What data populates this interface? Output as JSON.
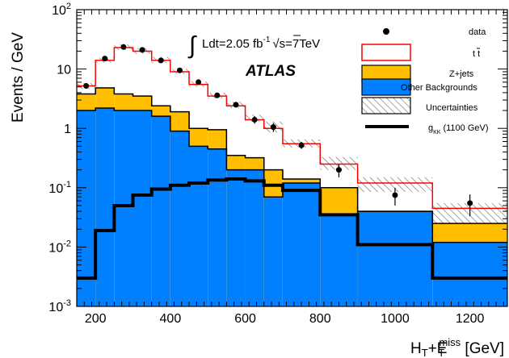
{
  "chart_data": {
    "type": "bar",
    "title": "",
    "ylabel": "Events / GeV",
    "xlabel_main": "H",
    "xlabel_sub1": "T",
    "xlabel_plus": "+E",
    "xlabel_sup": "miss",
    "xlabel_sub2": "T",
    "xlabel_unit": " [GeV]",
    "xlim": [
      150,
      1300
    ],
    "ylim": [
      0.001,
      100
    ],
    "ylog": true,
    "x_ticks": [
      200,
      400,
      600,
      800,
      1000,
      1200
    ],
    "x_tick_labels": [
      "200",
      "400",
      "600",
      "800",
      "1000",
      "1200"
    ],
    "y_ticks": [
      {
        "value": 0.001,
        "base": "10",
        "exp": "-3"
      },
      {
        "value": 0.01,
        "base": "10",
        "exp": "-2"
      },
      {
        "value": 0.1,
        "base": "10",
        "exp": "-1"
      },
      {
        "value": 1,
        "base": "1",
        "exp": ""
      },
      {
        "value": 10,
        "base": "10",
        "exp": ""
      },
      {
        "value": 100,
        "base": "10",
        "exp": "2"
      }
    ],
    "bin_edges": [
      150,
      200,
      250,
      300,
      350,
      400,
      450,
      500,
      550,
      600,
      650,
      700,
      800,
      900,
      1100,
      1300
    ],
    "series": [
      {
        "name": "Other Backgrounds",
        "color": "#0080ff",
        "values": [
          2.0,
          2.2,
          2.0,
          2.0,
          1.6,
          0.9,
          0.5,
          0.45,
          0.2,
          0.2,
          0.07,
          0.12,
          0.035,
          0.04,
          0.012
        ]
      },
      {
        "name": "Z+jets",
        "color": "#ffbf00",
        "values": [
          3.8,
          4.8,
          3.8,
          3.5,
          2.4,
          1.9,
          1.0,
          0.95,
          0.35,
          0.32,
          0.2,
          0.14,
          0.1,
          0.04,
          0.025
        ]
      },
      {
        "name": "t t",
        "color": "#ff0000",
        "values": [
          5.2,
          14.0,
          23.0,
          20.0,
          14.0,
          9.0,
          5.5,
          3.5,
          2.4,
          1.4,
          1.0,
          0.55,
          0.25,
          0.12,
          0.045
        ]
      }
    ],
    "uncertainty_band": {
      "name": "Uncertainties",
      "low": [
        4.6,
        12.8,
        21.0,
        18.0,
        12.5,
        8.2,
        5.0,
        3.2,
        2.2,
        1.3,
        0.85,
        0.48,
        0.2,
        0.085,
        0.018
      ],
      "high": [
        5.8,
        15.5,
        26.0,
        22.5,
        16.0,
        10.0,
        6.2,
        4.0,
        2.8,
        1.7,
        1.3,
        0.65,
        0.33,
        0.15,
        0.055
      ]
    },
    "signal": {
      "name": "(1100 GeV)",
      "values": [
        0.003,
        0.019,
        0.05,
        0.075,
        0.095,
        0.11,
        0.12,
        0.135,
        0.14,
        0.13,
        0.11,
        0.09,
        0.035,
        0.011,
        0.003
      ]
    },
    "data": {
      "name": "data",
      "x": [
        175,
        225,
        275,
        325,
        375,
        425,
        475,
        525,
        575,
        625,
        675,
        750,
        850,
        1000,
        1200
      ],
      "y": [
        5.2,
        15.0,
        23.5,
        21.0,
        14.0,
        9.5,
        6.0,
        3.6,
        2.5,
        1.4,
        1.05,
        0.52,
        0.2,
        0.075,
        0.055
      ],
      "yerr": [
        0.4,
        0.65,
        0.85,
        0.8,
        0.6,
        0.5,
        0.4,
        0.3,
        0.25,
        0.2,
        0.18,
        0.07,
        0.05,
        0.025,
        0.022
      ]
    },
    "annotations": {
      "lumi_prefix": "Ldt=2.05  fb",
      "lumi_exp": "-1",
      "lumi_rest": "s=7TeV",
      "experiment": "ATLAS",
      "signal_label_g": "g",
      "signal_label_sub": "KK"
    }
  }
}
